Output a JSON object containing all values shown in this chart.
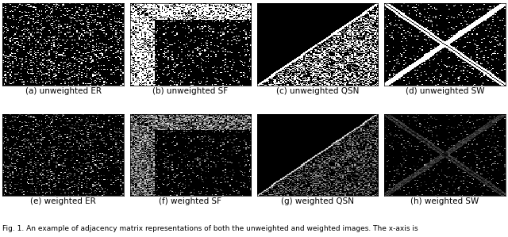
{
  "captions": [
    "(a) unweighted ER",
    "(b) unweighted SF",
    "(c) unweighted QSN",
    "(d) unweighted SW",
    "(e) weighted ER",
    "(f) weighted SF",
    "(g) weighted QSN",
    "(h) weighted SW"
  ],
  "caption_fontsize": 7.5,
  "fig_width": 6.4,
  "fig_height": 2.99,
  "n": 100,
  "background_color": "#ffffff",
  "footer_text": "Fig. 1. An example of adjacency matrix representations of both the unweighted and weighted images. The x-axis is",
  "footer_fontsize": 6.5
}
